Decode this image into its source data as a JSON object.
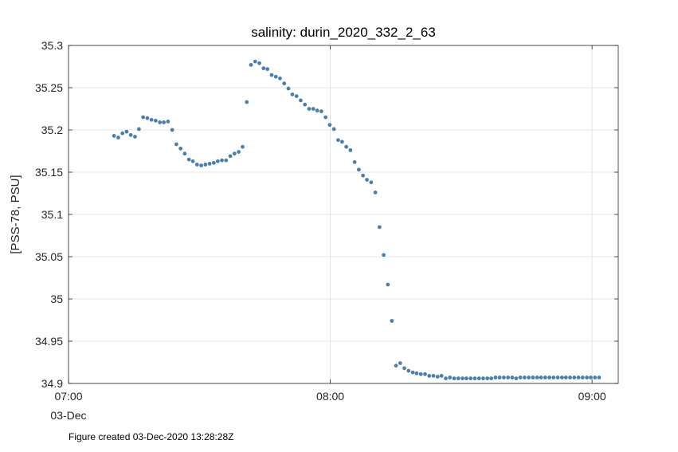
{
  "chart_data": {
    "type": "scatter",
    "title": "salinity: durin_2020_332_2_63",
    "xlabel": "",
    "ylabel": "[PSS-78, PSU]",
    "x_axis": "time (hours)",
    "xlim": [
      7.0,
      9.1
    ],
    "ylim": [
      34.9,
      35.3
    ],
    "xticks": [
      {
        "value": 7.0,
        "label": "07:00"
      },
      {
        "value": 8.0,
        "label": "08:00"
      },
      {
        "value": 9.0,
        "label": "09:00"
      }
    ],
    "x_sublabel": "03-Dec",
    "yticks": [
      {
        "value": 34.9,
        "label": "34.9"
      },
      {
        "value": 34.95,
        "label": "34.95"
      },
      {
        "value": 35.0,
        "label": "35"
      },
      {
        "value": 35.05,
        "label": "35.05"
      },
      {
        "value": 35.1,
        "label": "35.1"
      },
      {
        "value": 35.15,
        "label": "35.15"
      },
      {
        "value": 35.2,
        "label": "35.2"
      },
      {
        "value": 35.25,
        "label": "35.25"
      },
      {
        "value": 35.3,
        "label": "35.3"
      }
    ],
    "grid": true,
    "marker_color": "#4a7fb0",
    "series": [
      {
        "name": "",
        "points": [
          [
            7.174,
            35.193
          ],
          [
            7.19,
            35.191
          ],
          [
            7.206,
            35.196
          ],
          [
            7.222,
            35.198
          ],
          [
            7.238,
            35.194
          ],
          [
            7.254,
            35.192
          ],
          [
            7.269,
            35.201
          ],
          [
            7.285,
            35.215
          ],
          [
            7.301,
            35.214
          ],
          [
            7.317,
            35.212
          ],
          [
            7.333,
            35.211
          ],
          [
            7.349,
            35.209
          ],
          [
            7.364,
            35.209
          ],
          [
            7.38,
            35.21
          ],
          [
            7.396,
            35.2
          ],
          [
            7.412,
            35.183
          ],
          [
            7.428,
            35.178
          ],
          [
            7.444,
            35.172
          ],
          [
            7.46,
            35.165
          ],
          [
            7.475,
            35.163
          ],
          [
            7.491,
            35.159
          ],
          [
            7.507,
            35.158
          ],
          [
            7.523,
            35.159
          ],
          [
            7.539,
            35.16
          ],
          [
            7.555,
            35.161
          ],
          [
            7.57,
            35.163
          ],
          [
            7.586,
            35.164
          ],
          [
            7.602,
            35.164
          ],
          [
            7.618,
            35.169
          ],
          [
            7.634,
            35.172
          ],
          [
            7.65,
            35.174
          ],
          [
            7.665,
            35.18
          ],
          [
            7.681,
            35.233
          ],
          [
            7.697,
            35.277
          ],
          [
            7.713,
            35.281
          ],
          [
            7.729,
            35.279
          ],
          [
            7.745,
            35.273
          ],
          [
            7.76,
            35.272
          ],
          [
            7.776,
            35.265
          ],
          [
            7.792,
            35.263
          ],
          [
            7.808,
            35.261
          ],
          [
            7.824,
            35.255
          ],
          [
            7.84,
            35.249
          ],
          [
            7.855,
            35.242
          ],
          [
            7.871,
            35.24
          ],
          [
            7.887,
            35.235
          ],
          [
            7.903,
            35.23
          ],
          [
            7.919,
            35.225
          ],
          [
            7.935,
            35.225
          ],
          [
            7.95,
            35.223
          ],
          [
            7.966,
            35.222
          ],
          [
            7.982,
            35.215
          ],
          [
            7.998,
            35.206
          ],
          [
            8.014,
            35.201
          ],
          [
            8.03,
            35.188
          ],
          [
            8.045,
            35.186
          ],
          [
            8.061,
            35.18
          ],
          [
            8.077,
            35.176
          ],
          [
            8.093,
            35.162
          ],
          [
            8.109,
            35.153
          ],
          [
            8.125,
            35.146
          ],
          [
            8.14,
            35.141
          ],
          [
            8.156,
            35.138
          ],
          [
            8.172,
            35.126
          ],
          [
            8.188,
            35.085
          ],
          [
            8.204,
            35.052
          ],
          [
            8.22,
            35.017
          ],
          [
            8.235,
            34.974
          ],
          [
            8.251,
            34.921
          ],
          [
            8.267,
            34.924
          ],
          [
            8.283,
            34.918
          ],
          [
            8.299,
            34.915
          ],
          [
            8.315,
            34.913
          ],
          [
            8.33,
            34.912
          ],
          [
            8.346,
            34.911
          ],
          [
            8.362,
            34.911
          ],
          [
            8.378,
            34.909
          ],
          [
            8.394,
            34.909
          ],
          [
            8.41,
            34.908
          ],
          [
            8.425,
            34.909
          ],
          [
            8.441,
            34.906
          ],
          [
            8.457,
            34.907
          ],
          [
            8.473,
            34.906
          ],
          [
            8.489,
            34.906
          ],
          [
            8.505,
            34.906
          ],
          [
            8.52,
            34.906
          ],
          [
            8.536,
            34.906
          ],
          [
            8.552,
            34.906
          ],
          [
            8.568,
            34.906
          ],
          [
            8.584,
            34.906
          ],
          [
            8.6,
            34.906
          ],
          [
            8.615,
            34.906
          ],
          [
            8.631,
            34.907
          ],
          [
            8.647,
            34.907
          ],
          [
            8.663,
            34.907
          ],
          [
            8.679,
            34.907
          ],
          [
            8.695,
            34.907
          ],
          [
            8.71,
            34.906
          ],
          [
            8.726,
            34.907
          ],
          [
            8.742,
            34.907
          ],
          [
            8.758,
            34.907
          ],
          [
            8.774,
            34.907
          ],
          [
            8.79,
            34.907
          ],
          [
            8.805,
            34.907
          ],
          [
            8.821,
            34.907
          ],
          [
            8.837,
            34.907
          ],
          [
            8.853,
            34.907
          ],
          [
            8.869,
            34.907
          ],
          [
            8.885,
            34.907
          ],
          [
            8.9,
            34.907
          ],
          [
            8.916,
            34.907
          ],
          [
            8.932,
            34.907
          ],
          [
            8.948,
            34.907
          ],
          [
            8.964,
            34.907
          ],
          [
            8.98,
            34.907
          ],
          [
            8.995,
            34.907
          ],
          [
            9.011,
            34.907
          ],
          [
            9.027,
            34.907
          ]
        ]
      }
    ]
  },
  "footer": {
    "note": "Figure created 03-Dec-2020 13:28:28Z"
  }
}
